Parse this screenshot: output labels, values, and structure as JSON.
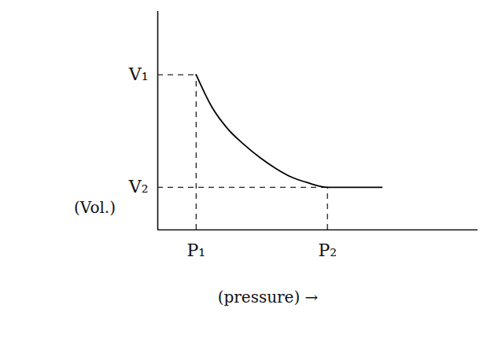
{
  "chart_data": {
    "type": "line",
    "xlabel": "(pressure) →",
    "ylabel": "(Vol.)",
    "x": [
      1.2,
      1.7,
      2.2,
      2.7,
      3.2,
      3.7,
      4.2,
      4.7,
      5.3,
      6.0,
      7.0
    ],
    "values": [
      7.1,
      5.6,
      4.6,
      3.9,
      3.3,
      2.8,
      2.4,
      2.15,
      1.95,
      1.95,
      1.95
    ],
    "color": "#000000",
    "xlim": [
      0,
      10
    ],
    "ylim": [
      0,
      10
    ],
    "xticks": [
      {
        "value": 1.2,
        "label": "P₁"
      },
      {
        "value": 5.3,
        "label": "P₂"
      }
    ],
    "yticks": [
      {
        "value": 7.1,
        "label": "V₁"
      },
      {
        "value": 1.95,
        "label": "V₂"
      }
    ],
    "grid": false
  }
}
